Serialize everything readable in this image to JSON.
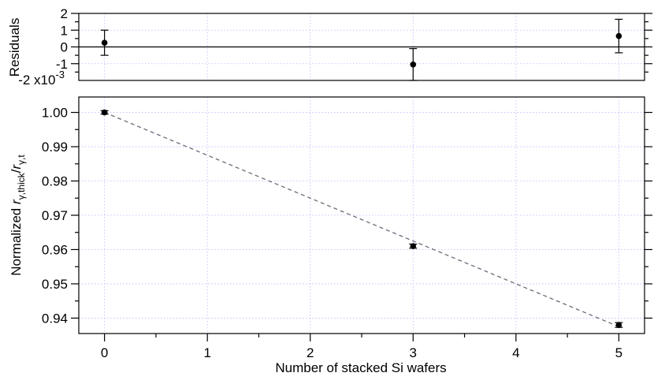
{
  "chart_data": [
    {
      "type": "scatter",
      "panel": "residuals",
      "ylabel": "Residuals",
      "y_multiplier_label": "-2 x10",
      "y_multiplier_exp": "-3",
      "xlim": [
        -0.25,
        5.25
      ],
      "ylim": [
        -2,
        2
      ],
      "yticks": [
        2,
        1,
        0,
        -1
      ],
      "ytick_labels": [
        "2",
        "1",
        "0",
        "-1"
      ],
      "grid": true,
      "zero_line": true,
      "series": [
        {
          "x": [
            0,
            3,
            5
          ],
          "y": [
            0.25,
            -1.05,
            0.65
          ],
          "yerr": [
            0.75,
            0.95,
            1.0
          ]
        }
      ]
    },
    {
      "type": "scatter",
      "panel": "main",
      "xlabel": "Number of stacked Si wafers",
      "ylabel_prefix": "Normalized ",
      "ylabel_r": "r",
      "ylabel_sub1": "γ,thick",
      "ylabel_slash": "/",
      "ylabel_sub2": "γ,t",
      "xlim": [
        -0.25,
        5.25
      ],
      "ylim": [
        0.9355,
        1.0045
      ],
      "xticks": [
        0,
        1,
        2,
        3,
        4,
        5
      ],
      "xtick_labels": [
        "0",
        "1",
        "2",
        "3",
        "4",
        "5"
      ],
      "yticks": [
        0.94,
        0.95,
        0.96,
        0.97,
        0.98,
        0.99,
        1.0
      ],
      "ytick_labels": [
        "0.94",
        "0.95",
        "0.96",
        "0.97",
        "0.98",
        "0.99",
        "1.00"
      ],
      "grid": true,
      "series": [
        {
          "x": [
            0,
            3,
            5
          ],
          "y": [
            1.0,
            0.961,
            0.938
          ],
          "yerr": [
            0.0005,
            0.0006,
            0.0007
          ]
        }
      ],
      "fit_line": {
        "x": [
          0,
          5
        ],
        "y": [
          1.0,
          0.9375
        ]
      }
    }
  ]
}
